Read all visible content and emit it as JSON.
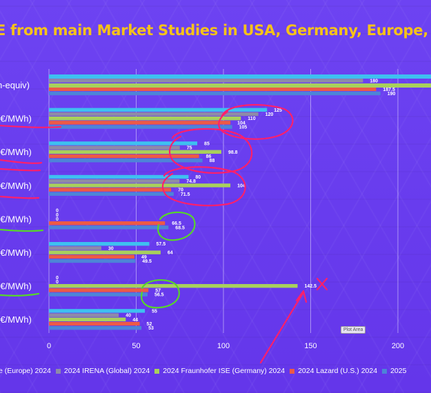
{
  "title": "E from main Market Studies in USA, Germany, Europe, G",
  "plot_area_tooltip": "Plot Area",
  "chart_data": {
    "type": "bar",
    "orientation": "horizontal",
    "categories": [
      "h-equiv)",
      "(€/MWh)",
      "(€/MWh)",
      "(€/MWh)",
      "(€/MWh)",
      "(€/MWh)",
      "(€/MWh)",
      "(€/MWh)"
    ],
    "category_note": "(€/MWh)",
    "xlim": [
      0,
      220
    ],
    "xticks": [
      0,
      50,
      100,
      150,
      200
    ],
    "grid": true,
    "legend_position": "bottom",
    "series": [
      {
        "name": "e (Europe) 2024",
        "color": "#3ec0f0",
        "values": [
          null,
          125,
          85,
          80,
          0,
          57.5,
          0,
          55
        ]
      },
      {
        "name": "2024 IRENA (Global) 2024",
        "color": "#8e8aa8",
        "values": [
          180,
          120,
          75,
          74.8,
          0,
          30,
          0,
          40
        ]
      },
      {
        "name": "2024 Fraunhofer ISE (Germany) 2024",
        "color": "#a8d05c",
        "values": [
          null,
          110,
          98.8,
          104,
          0,
          64,
          142.5,
          44
        ]
      },
      {
        "name": "2024 Lazard (U.S.) 2024",
        "color": "#ec5a46",
        "values": [
          187.5,
          104,
          86,
          70,
          66.5,
          49,
          57,
          52
        ]
      },
      {
        "name": "2025",
        "color": "#4d84d8",
        "values": [
          190,
          105,
          88,
          71.5,
          68.5,
          49.5,
          56.5,
          53
        ]
      }
    ],
    "data_labels": [
      [
        "",
        "180",
        "",
        "187.5",
        "190"
      ],
      [
        "125",
        "120",
        "110",
        "104",
        "105"
      ],
      [
        "85",
        "75",
        "98.8",
        "86",
        "88"
      ],
      [
        "80",
        "74.8",
        "104",
        "70",
        "71.5"
      ],
      [
        "0",
        "0",
        "0",
        "66.5",
        "68.5"
      ],
      [
        "57.5",
        "30",
        "64",
        "49",
        "49.5"
      ],
      [
        "0",
        "0",
        "142.5",
        "57",
        "56.5"
      ],
      [
        "55",
        "40",
        "44",
        "52",
        "53"
      ]
    ]
  },
  "legend": [
    {
      "label": "e (Europe) 2024",
      "color": "#3ec0f0"
    },
    {
      "label": "2024 IRENA (Global) 2024",
      "color": "#8e8aa8"
    },
    {
      "label": "2024 Fraunhofer ISE (Germany) 2024",
      "color": "#a8d05c"
    },
    {
      "label": "2024 Lazard (U.S.) 2024",
      "color": "#ec5a46"
    },
    {
      "label": "2025",
      "color": "#4d84d8"
    }
  ]
}
